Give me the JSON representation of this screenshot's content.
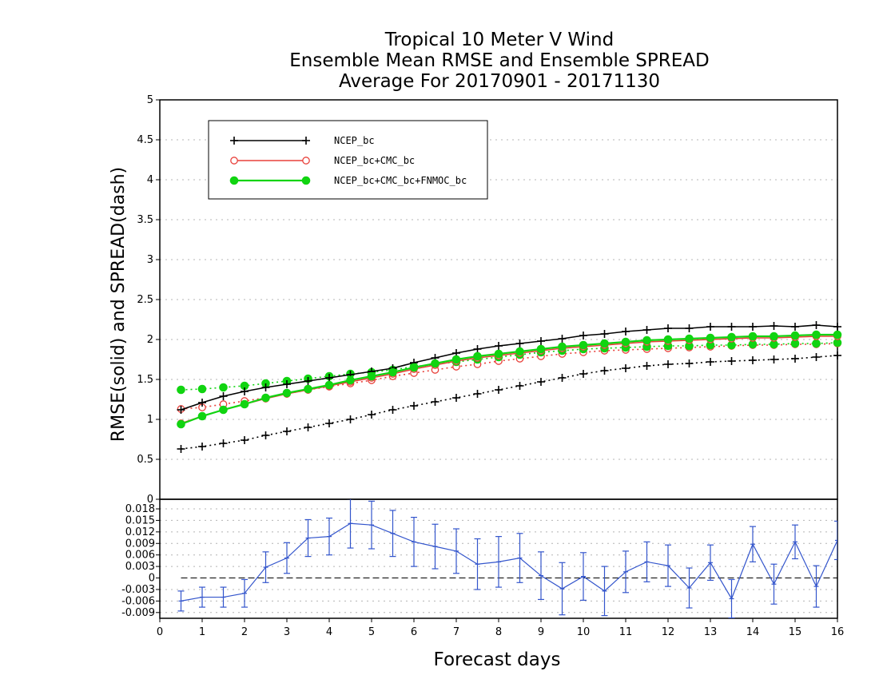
{
  "title": {
    "line1": "Tropical 10 Meter V Wind",
    "line2": "Ensemble Mean RMSE and Ensemble SPREAD",
    "line3": "Average For 20170901 - 20171130"
  },
  "chart_data": [
    {
      "type": "line",
      "xlabel": "Forecast days",
      "ylabel": "RMSE(solid) and SPREAD(dash)",
      "xlim": [
        0,
        16
      ],
      "ylim": [
        0,
        5
      ],
      "xticks": [
        "0",
        "1",
        "2",
        "3",
        "4",
        "5",
        "6",
        "7",
        "8",
        "9",
        "10",
        "11",
        "12",
        "13",
        "14",
        "15",
        "16"
      ],
      "yticks": [
        "0",
        "0.5",
        "1",
        "1.5",
        "2",
        "2.5",
        "3",
        "3.5",
        "4",
        "4.5",
        "5"
      ],
      "grid": true,
      "legend_position": "top-left",
      "x": [
        0.5,
        1,
        1.5,
        2,
        2.5,
        3,
        3.5,
        4,
        4.5,
        5,
        5.5,
        6,
        6.5,
        7,
        7.5,
        8,
        8.5,
        9,
        9.5,
        10,
        10.5,
        11,
        11.5,
        12,
        12.5,
        13,
        13.5,
        14,
        14.5,
        15,
        15.5,
        16
      ],
      "series": [
        {
          "name": "NCEP_bc",
          "color": "#000000",
          "marker": "plus",
          "rmse": [
            1.12,
            1.21,
            1.29,
            1.35,
            1.4,
            1.44,
            1.48,
            1.52,
            1.56,
            1.6,
            1.64,
            1.71,
            1.77,
            1.83,
            1.88,
            1.92,
            1.95,
            1.98,
            2.01,
            2.05,
            2.07,
            2.1,
            2.12,
            2.14,
            2.14,
            2.16,
            2.16,
            2.16,
            2.17,
            2.16,
            2.18,
            2.16
          ],
          "spread": [
            0.63,
            0.66,
            0.7,
            0.74,
            0.8,
            0.85,
            0.9,
            0.95,
            1.0,
            1.06,
            1.12,
            1.17,
            1.22,
            1.27,
            1.32,
            1.37,
            1.42,
            1.47,
            1.52,
            1.57,
            1.61,
            1.64,
            1.67,
            1.69,
            1.7,
            1.72,
            1.73,
            1.74,
            1.75,
            1.76,
            1.78,
            1.8
          ]
        },
        {
          "name": "NCEP_bc+CMC_bc",
          "color": "#e8403a",
          "marker": "open-circle",
          "rmse": [
            0.95,
            1.04,
            1.12,
            1.19,
            1.26,
            1.32,
            1.37,
            1.42,
            1.47,
            1.52,
            1.57,
            1.63,
            1.68,
            1.73,
            1.77,
            1.8,
            1.83,
            1.86,
            1.89,
            1.91,
            1.93,
            1.95,
            1.97,
            1.98,
            1.99,
            2.0,
            2.01,
            2.02,
            2.02,
            2.03,
            2.04,
            2.04
          ],
          "spread": [
            1.13,
            1.15,
            1.19,
            1.23,
            1.27,
            1.32,
            1.37,
            1.41,
            1.45,
            1.49,
            1.54,
            1.58,
            1.62,
            1.66,
            1.69,
            1.73,
            1.76,
            1.79,
            1.82,
            1.84,
            1.86,
            1.87,
            1.88,
            1.89,
            1.9,
            1.91,
            1.92,
            1.93,
            1.93,
            1.94,
            1.94,
            1.95
          ]
        },
        {
          "name": "NCEP_bc+CMC_bc+FNMOC_bc",
          "color": "#11d411",
          "marker": "filled-circle",
          "rmse": [
            0.94,
            1.04,
            1.12,
            1.19,
            1.27,
            1.33,
            1.38,
            1.43,
            1.49,
            1.54,
            1.59,
            1.65,
            1.7,
            1.75,
            1.79,
            1.82,
            1.85,
            1.88,
            1.91,
            1.93,
            1.95,
            1.97,
            1.99,
            2.0,
            2.01,
            2.02,
            2.03,
            2.04,
            2.04,
            2.05,
            2.06,
            2.06
          ],
          "spread": [
            1.37,
            1.38,
            1.4,
            1.42,
            1.45,
            1.48,
            1.51,
            1.54,
            1.57,
            1.59,
            1.62,
            1.66,
            1.69,
            1.72,
            1.75,
            1.78,
            1.81,
            1.84,
            1.86,
            1.88,
            1.89,
            1.9,
            1.91,
            1.92,
            1.92,
            1.93,
            1.93,
            1.94,
            1.94,
            1.95,
            1.95,
            1.96
          ]
        }
      ]
    },
    {
      "type": "line",
      "xlabel": "Forecast days",
      "ylabel": "",
      "xlim": [
        0,
        16
      ],
      "ylim": [
        -0.0105,
        0.0205
      ],
      "yticks": [
        "0.018",
        "0.015",
        "0.012",
        "0.009",
        "0.006",
        "0.003",
        "0",
        "-0.003",
        "-0.006",
        "-0.009"
      ],
      "grid": true,
      "zero_line": "dashed",
      "series": [
        {
          "name": "",
          "color": "#3355cc",
          "x": [
            0.5,
            1,
            1.5,
            2,
            2.5,
            3,
            3.5,
            4,
            4.5,
            5,
            5.5,
            6,
            6.5,
            7,
            7.5,
            8,
            8.5,
            9,
            9.5,
            10,
            10.5,
            11,
            11.5,
            12,
            12.5,
            13,
            13.5,
            14,
            14.5,
            15,
            15.5,
            16
          ],
          "values": [
            -0.006,
            -0.005,
            -0.005,
            -0.004,
            0.0028,
            0.0052,
            0.0104,
            0.0108,
            0.0142,
            0.0138,
            0.0116,
            0.0094,
            0.0082,
            0.007,
            0.0036,
            0.0042,
            0.0052,
            0.0006,
            -0.0028,
            0.0004,
            -0.0034,
            0.0016,
            0.0042,
            0.0032,
            -0.0026,
            0.004,
            -0.0054,
            0.0088,
            -0.0016,
            0.0094,
            -0.0022,
            0.0098
          ],
          "error": [
            0.0026,
            0.0026,
            0.0026,
            0.0036,
            0.004,
            0.004,
            0.0048,
            0.0048,
            0.0064,
            0.0062,
            0.006,
            0.0064,
            0.0058,
            0.0058,
            0.0066,
            0.0066,
            0.0064,
            0.0062,
            0.0068,
            0.0062,
            0.0064,
            0.0054,
            0.0052,
            0.0054,
            0.0052,
            0.0046,
            0.005,
            0.0046,
            0.0052,
            0.0044,
            0.0054,
            0.005
          ]
        }
      ]
    }
  ]
}
